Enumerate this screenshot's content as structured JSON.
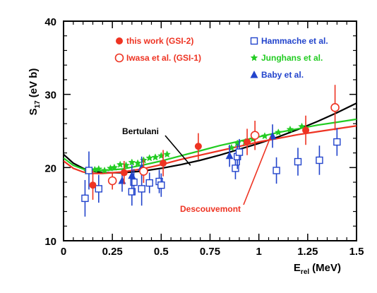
{
  "chart_data": {
    "type": "scatter",
    "xlabel": "E",
    "xlabel_sub": "rel",
    "xlabel_unit": "(MeV)",
    "ylabel": "S",
    "ylabel_sub": "17",
    "ylabel_unit": "(eV b)",
    "xlim": [
      0,
      1.5
    ],
    "ylim": [
      10,
      40
    ],
    "xticks": [
      0,
      0.25,
      0.5,
      0.75,
      1,
      1.25,
      1.5
    ],
    "xtick_labels": [
      "0",
      "0.25",
      "0.5",
      "0.75",
      "1",
      "1.25",
      "1.5"
    ],
    "yticks": [
      10,
      20,
      30,
      40
    ],
    "ytick_labels": [
      "10",
      "20",
      "30",
      "40"
    ],
    "grid": false,
    "legend_position": "top",
    "legend": [
      {
        "label": "this work (GSI-2)",
        "marker": "filled-circle",
        "color": "#ee3322"
      },
      {
        "label": "Iwasa et al. (GSI-1)",
        "marker": "open-circle",
        "color": "#ee3322"
      },
      {
        "label": "Hammache et al.",
        "marker": "open-square",
        "color": "#2244cc"
      },
      {
        "label": "Junghans et al.",
        "marker": "star",
        "color": "#22cc22"
      },
      {
        "label": "Baby et al.",
        "marker": "filled-triangle",
        "color": "#2244cc"
      }
    ],
    "series": [
      {
        "name": "this work (GSI-2)",
        "marker": "filled-circle",
        "color": "#ee3322",
        "points": [
          {
            "x": 0.15,
            "y": 17.6,
            "yerr": 2.0
          },
          {
            "x": 0.31,
            "y": 19.3,
            "yerr": 1.6
          },
          {
            "x": 0.51,
            "y": 20.6,
            "yerr": 1.8
          },
          {
            "x": 0.69,
            "y": 22.9,
            "yerr": 1.8
          },
          {
            "x": 0.94,
            "y": 23.5,
            "yerr": 1.8
          },
          {
            "x": 1.24,
            "y": 25.1,
            "yerr": 2.0
          }
        ]
      },
      {
        "name": "Iwasa et al. (GSI-1)",
        "marker": "open-circle",
        "color": "#ee3322",
        "points": [
          {
            "x": 0.25,
            "y": 18.2,
            "yerr": 1.2
          },
          {
            "x": 0.41,
            "y": 19.5,
            "yerr": 1.6
          },
          {
            "x": 0.98,
            "y": 24.4,
            "yerr": 2.0
          },
          {
            "x": 1.39,
            "y": 28.2,
            "yerr": 3.1
          }
        ]
      },
      {
        "name": "Hammache et al.",
        "marker": "open-square",
        "color": "#2244cc",
        "points": [
          {
            "x": 0.11,
            "y": 15.8,
            "yerr": 2.5
          },
          {
            "x": 0.13,
            "y": 19.6,
            "yerr": 2.6
          },
          {
            "x": 0.18,
            "y": 17.1,
            "yerr": 1.9
          },
          {
            "x": 0.35,
            "y": 16.7,
            "yerr": 1.9
          },
          {
            "x": 0.36,
            "y": 18.0,
            "yerr": 1.8
          },
          {
            "x": 0.4,
            "y": 17.1,
            "yerr": 2.3
          },
          {
            "x": 0.44,
            "y": 17.9,
            "yerr": 1.4
          },
          {
            "x": 0.49,
            "y": 18.1,
            "yerr": 1.6
          },
          {
            "x": 0.5,
            "y": 17.6,
            "yerr": 1.6
          },
          {
            "x": 0.88,
            "y": 19.9,
            "yerr": 1.5
          },
          {
            "x": 0.89,
            "y": 21.5,
            "yerr": 1.7
          },
          {
            "x": 0.9,
            "y": 22.1,
            "yerr": 1.8
          },
          {
            "x": 1.09,
            "y": 19.6,
            "yerr": 1.8
          },
          {
            "x": 1.2,
            "y": 20.8,
            "yerr": 1.9
          },
          {
            "x": 1.31,
            "y": 21.0,
            "yerr": 2.0
          },
          {
            "x": 1.4,
            "y": 23.5,
            "yerr": 1.9
          }
        ]
      },
      {
        "name": "Junghans et al.",
        "marker": "star",
        "color": "#22cc22",
        "points": [
          {
            "x": 0.12,
            "y": 19.5
          },
          {
            "x": 0.16,
            "y": 19.7
          },
          {
            "x": 0.18,
            "y": 19.8
          },
          {
            "x": 0.21,
            "y": 19.6
          },
          {
            "x": 0.24,
            "y": 19.9
          },
          {
            "x": 0.26,
            "y": 20.0
          },
          {
            "x": 0.29,
            "y": 20.4
          },
          {
            "x": 0.32,
            "y": 20.3
          },
          {
            "x": 0.35,
            "y": 20.7
          },
          {
            "x": 0.38,
            "y": 20.6
          },
          {
            "x": 0.41,
            "y": 21.0
          },
          {
            "x": 0.44,
            "y": 21.3
          },
          {
            "x": 0.47,
            "y": 21.4
          },
          {
            "x": 0.5,
            "y": 21.6
          },
          {
            "x": 0.53,
            "y": 21.8
          },
          {
            "x": 0.86,
            "y": 22.7
          },
          {
            "x": 0.89,
            "y": 23.3
          },
          {
            "x": 0.93,
            "y": 23.5
          },
          {
            "x": 0.97,
            "y": 23.9
          },
          {
            "x": 1.03,
            "y": 24.3
          },
          {
            "x": 1.1,
            "y": 24.8
          },
          {
            "x": 1.16,
            "y": 25.2
          },
          {
            "x": 1.22,
            "y": 25.6
          }
        ]
      },
      {
        "name": "Baby et al.",
        "marker": "filled-triangle",
        "color": "#2244cc",
        "points": [
          {
            "x": 0.3,
            "y": 18.2,
            "yerr": 1.5
          },
          {
            "x": 0.35,
            "y": 18.9,
            "yerr": 1.5
          },
          {
            "x": 0.4,
            "y": 20.0,
            "yerr": 1.5
          },
          {
            "x": 0.85,
            "y": 21.6,
            "yerr": 1.5
          },
          {
            "x": 1.07,
            "y": 24.3,
            "yerr": 1.6
          }
        ]
      }
    ],
    "curves": [
      {
        "name": "Bertulani",
        "color": "#000000",
        "x": [
          0,
          0.05,
          0.1,
          0.15,
          0.2,
          0.3,
          0.4,
          0.5,
          0.6,
          0.7,
          0.8,
          0.9,
          1.0,
          1.1,
          1.2,
          1.3,
          1.4,
          1.5
        ],
        "y": [
          21.8,
          20.6,
          19.9,
          19.5,
          19.3,
          19.3,
          19.5,
          19.9,
          20.4,
          21.0,
          21.7,
          22.5,
          23.3,
          24.2,
          25.2,
          26.3,
          27.5,
          28.8
        ]
      },
      {
        "name": "Descouvemont",
        "color": "#ee3322",
        "x": [
          0,
          0.05,
          0.1,
          0.15,
          0.2,
          0.3,
          0.4,
          0.5,
          0.6,
          0.7,
          0.8,
          0.9,
          1.0,
          1.1,
          1.2,
          1.3,
          1.4,
          1.5
        ],
        "y": [
          20.9,
          19.9,
          19.4,
          19.2,
          19.2,
          19.4,
          19.8,
          20.4,
          21.1,
          21.7,
          22.3,
          22.9,
          23.5,
          24.0,
          24.5,
          24.9,
          25.3,
          25.7
        ]
      },
      {
        "name": "",
        "color": "#22cc22",
        "x": [
          0,
          0.05,
          0.1,
          0.15,
          0.2,
          0.3,
          0.4,
          0.5,
          0.6,
          0.7,
          0.8,
          0.9,
          1.0,
          1.1,
          1.2,
          1.3,
          1.4,
          1.5
        ],
        "y": [
          21.3,
          20.3,
          19.8,
          19.6,
          19.6,
          19.8,
          20.3,
          20.9,
          21.6,
          22.3,
          23.0,
          23.6,
          24.2,
          24.8,
          25.3,
          25.8,
          26.2,
          26.6
        ]
      }
    ],
    "annotations": [
      {
        "text": "Bertulani",
        "color": "#000000",
        "arrow_to": {
          "x": 0.65,
          "y": 20.3
        }
      },
      {
        "text": "Descouvemont",
        "color": "#ee3322",
        "arrow_to": {
          "x": 1.06,
          "y": 24.2
        }
      }
    ]
  }
}
